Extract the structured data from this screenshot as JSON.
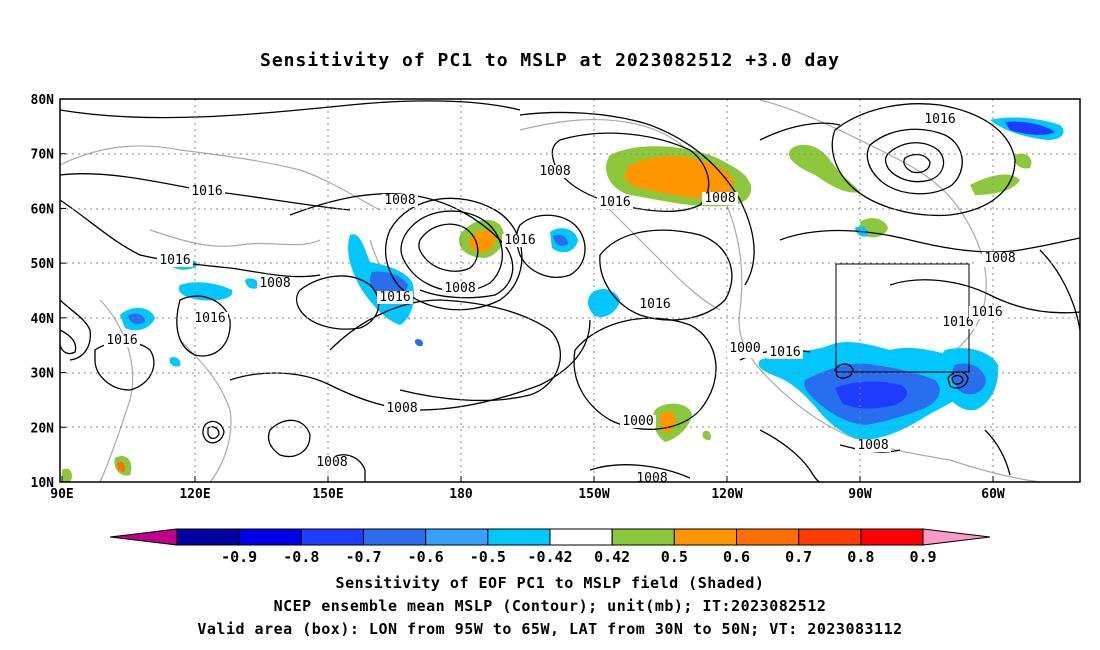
{
  "title": "Sensitivity of PC1 to MSLP at 2023082512 +3.0 day",
  "map": {
    "lat_labels": [
      "80N",
      "70N",
      "60N",
      "50N",
      "40N",
      "30N",
      "20N",
      "10N"
    ],
    "lon_labels": [
      "90E",
      "120E",
      "150E",
      "180",
      "150W",
      "120W",
      "90W",
      "60W"
    ],
    "contour_labels": [
      "1016",
      "1008",
      "1008",
      "1016",
      "1016",
      "1008",
      "1016",
      "1008",
      "1016",
      "1016",
      "1016",
      "1008",
      "1000",
      "1016",
      "1016",
      "1016",
      "1008",
      "1016",
      "1016",
      "1008",
      "1008",
      "1016",
      "1008",
      "1008",
      "1008",
      "1000"
    ]
  },
  "colorbar": {
    "labels": [
      "-0.9",
      "-0.8",
      "-0.7",
      "-0.6",
      "-0.5",
      "-0.42",
      "0.42",
      "0.5",
      "0.6",
      "0.7",
      "0.8",
      "0.9"
    ],
    "colors": [
      "#c0008c",
      "#0000a0",
      "#0000e6",
      "#1e3cff",
      "#2a6ef0",
      "#3aa0ff",
      "#00c8ff",
      "#ffffff",
      "#8cc83c",
      "#ff9600",
      "#ff6e00",
      "#ff3c00",
      "#ff0000",
      "#ff99c8"
    ]
  },
  "box": {
    "lon_west": "95W",
    "lon_east": "65W",
    "lat_south": "30N",
    "lat_north": "50N"
  },
  "footer": {
    "line1": "Sensitivity of EOF PC1 to MSLP field (Shaded)",
    "line2": "NCEP ensemble mean MSLP (Contour); unit(mb); IT:2023082512",
    "line3": "Valid area (box): LON from 95W to 65W, LAT from 30N to 50N; VT: 2023083112"
  }
}
